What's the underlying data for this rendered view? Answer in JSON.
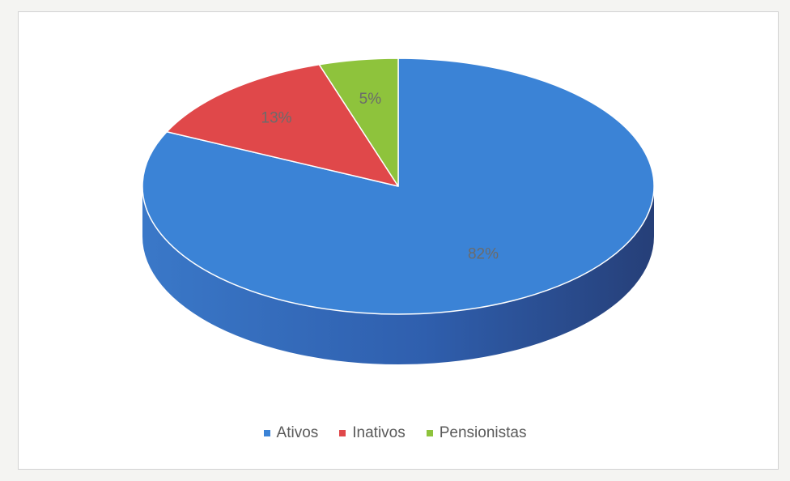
{
  "chart_data": {
    "type": "pie",
    "title": "",
    "style": "3d",
    "legend_position": "bottom",
    "slices": [
      {
        "label": "Ativos",
        "value": 82,
        "display": "82%",
        "color": "#3b83d6"
      },
      {
        "label": "Inativos",
        "value": 13,
        "display": "13%",
        "color": "#e0484a"
      },
      {
        "label": "Pensionistas",
        "value": 5,
        "display": "5%",
        "color": "#8ec33c"
      }
    ]
  }
}
